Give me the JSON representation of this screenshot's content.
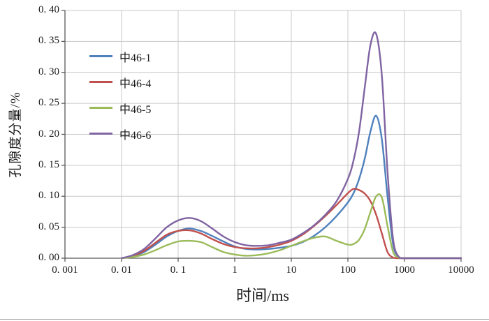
{
  "chart_data": {
    "type": "line",
    "title": "",
    "xlabel": "时间/ms",
    "ylabel": "孔隙度分量/%",
    "x_scale": "log",
    "xlim": [
      0.001,
      10000
    ],
    "ylim": [
      0,
      0.4
    ],
    "grid": true,
    "legend_position": "upper-left-inside",
    "grid_color": "#c9c9c9",
    "axis_color": "#595959",
    "text_color": "#1a1a1a",
    "y_tick_values": [
      0,
      0.05,
      0.1,
      0.15,
      0.2,
      0.25,
      0.3,
      0.35,
      0.4
    ],
    "y_tick_labels": [
      "0. 00",
      "0. 05",
      "0. 10",
      "0. 15",
      "0. 20",
      "0. 25",
      "0. 30",
      "0. 35",
      "0. 40"
    ],
    "x_tick_values": [
      0.001,
      0.01,
      0.1,
      1,
      10,
      100,
      1000,
      10000
    ],
    "x_tick_labels": [
      "0. 001",
      "0. 01",
      "0. 1",
      "1",
      "10",
      "100",
      "1000",
      "10000"
    ],
    "x": [
      0.01,
      0.0158,
      0.0251,
      0.0398,
      0.0631,
      0.1,
      0.158,
      0.251,
      0.398,
      0.631,
      1,
      1.58,
      2.51,
      3.98,
      6.31,
      10,
      15.8,
      25.1,
      39.8,
      63.1,
      100,
      126,
      158,
      200,
      251,
      316,
      398,
      501,
      631,
      794,
      1000,
      3162,
      10000
    ],
    "series": [
      {
        "name": "中46-1",
        "color": "#4f81bd",
        "values": [
          0,
          0.003,
          0.01,
          0.022,
          0.035,
          0.044,
          0.048,
          0.044,
          0.036,
          0.027,
          0.019,
          0.015,
          0.014,
          0.015,
          0.017,
          0.02,
          0.026,
          0.036,
          0.05,
          0.068,
          0.09,
          0.105,
          0.128,
          0.162,
          0.205,
          0.23,
          0.192,
          0.1,
          0.022,
          0.002,
          0,
          0,
          0
        ]
      },
      {
        "name": "中46-4",
        "color": "#c0504d",
        "values": [
          0,
          0.004,
          0.012,
          0.025,
          0.038,
          0.044,
          0.045,
          0.04,
          0.031,
          0.023,
          0.018,
          0.016,
          0.016,
          0.018,
          0.022,
          0.028,
          0.038,
          0.052,
          0.068,
          0.086,
          0.105,
          0.112,
          0.11,
          0.104,
          0.092,
          0.07,
          0.04,
          0.01,
          0.001,
          0,
          0,
          0,
          0
        ]
      },
      {
        "name": "中46-5",
        "color": "#9bbb59",
        "values": [
          0,
          0.002,
          0.006,
          0.013,
          0.021,
          0.027,
          0.028,
          0.026,
          0.018,
          0.01,
          0.006,
          0.004,
          0.005,
          0.008,
          0.013,
          0.02,
          0.027,
          0.033,
          0.035,
          0.028,
          0.022,
          0.023,
          0.03,
          0.048,
          0.075,
          0.1,
          0.098,
          0.052,
          0.01,
          0.001,
          0,
          0,
          0
        ]
      },
      {
        "name": "中46-6",
        "color": "#8064a2",
        "values": [
          0,
          0.005,
          0.015,
          0.032,
          0.05,
          0.061,
          0.065,
          0.06,
          0.048,
          0.035,
          0.026,
          0.021,
          0.02,
          0.021,
          0.025,
          0.03,
          0.04,
          0.053,
          0.07,
          0.092,
          0.128,
          0.158,
          0.205,
          0.278,
          0.345,
          0.362,
          0.295,
          0.14,
          0.03,
          0.002,
          0,
          0,
          0
        ]
      }
    ]
  }
}
